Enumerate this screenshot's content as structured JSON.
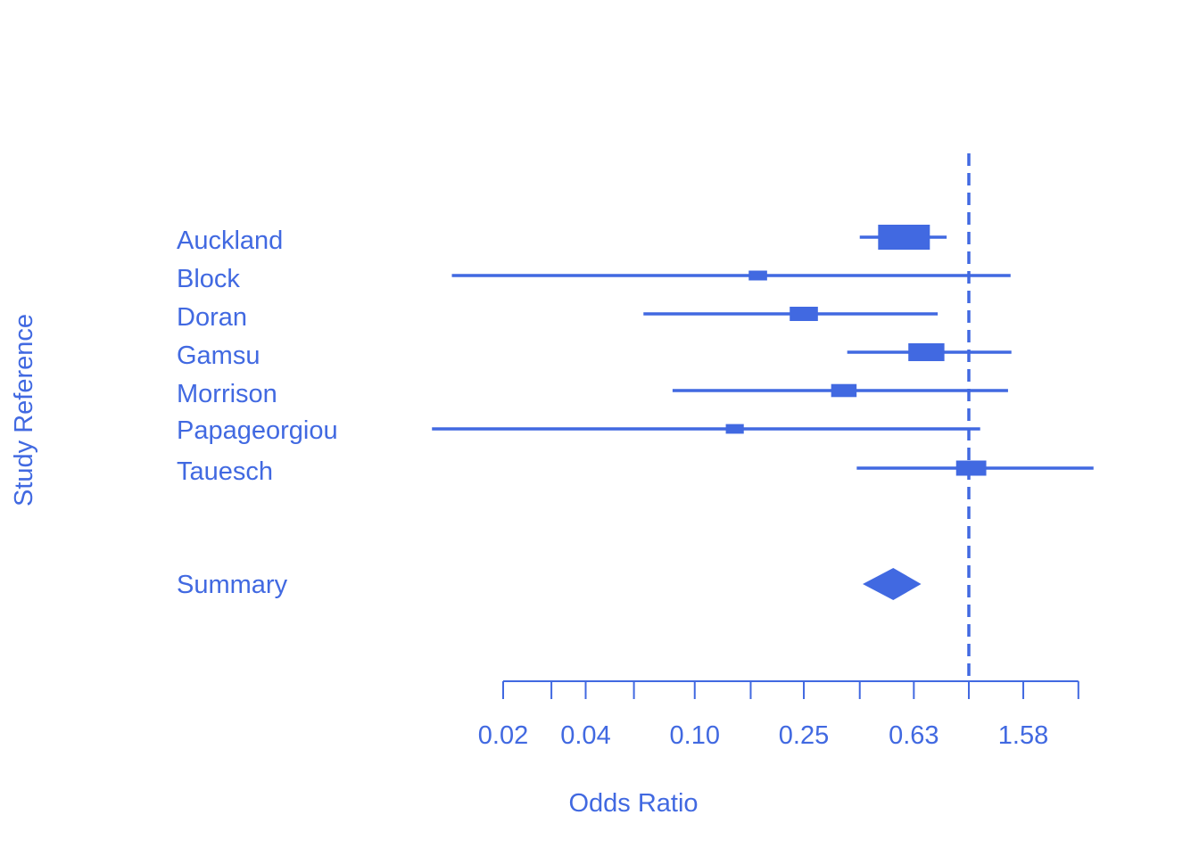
{
  "chart_data": {
    "type": "forest",
    "xlabel": "Odds Ratio",
    "ylabel": "Study Reference",
    "x_scale": "log",
    "xlim": [
      0.02,
      3.15
    ],
    "reference_line": 1.0,
    "tick_values": [
      0.02,
      0.03,
      0.04,
      0.06,
      0.1,
      0.16,
      0.25,
      0.4,
      0.63,
      1.0,
      1.58,
      2.51
    ],
    "tick_labels": [
      {
        "value": 0.02,
        "label": "0.02"
      },
      {
        "value": 0.04,
        "label": "0.04"
      },
      {
        "value": 0.1,
        "label": "0.10"
      },
      {
        "value": 0.25,
        "label": "0.25"
      },
      {
        "value": 0.63,
        "label": "0.63"
      },
      {
        "value": 1.58,
        "label": "1.58"
      }
    ],
    "studies": [
      {
        "name": "Auckland",
        "or": 0.58,
        "lower": 0.4,
        "upper": 0.83,
        "weight": 1.0
      },
      {
        "name": "Block",
        "or": 0.17,
        "lower": 0.013,
        "upper": 1.42,
        "weight": 0.15
      },
      {
        "name": "Doran",
        "or": 0.25,
        "lower": 0.065,
        "upper": 0.77,
        "weight": 0.4
      },
      {
        "name": "Gamsu",
        "or": 0.7,
        "lower": 0.36,
        "upper": 1.43,
        "weight": 0.6
      },
      {
        "name": "Morrison",
        "or": 0.35,
        "lower": 0.083,
        "upper": 1.39,
        "weight": 0.33
      },
      {
        "name": "Papageorgiou",
        "or": 0.14,
        "lower": 0.011,
        "upper": 1.1,
        "weight": 0.14
      },
      {
        "name": "Tauesch",
        "or": 1.02,
        "lower": 0.39,
        "upper": 2.85,
        "weight": 0.45
      }
    ],
    "summary": {
      "name": "Summary",
      "or": 0.53,
      "lower": 0.41,
      "upper": 0.67
    },
    "color": "#4169E1"
  }
}
